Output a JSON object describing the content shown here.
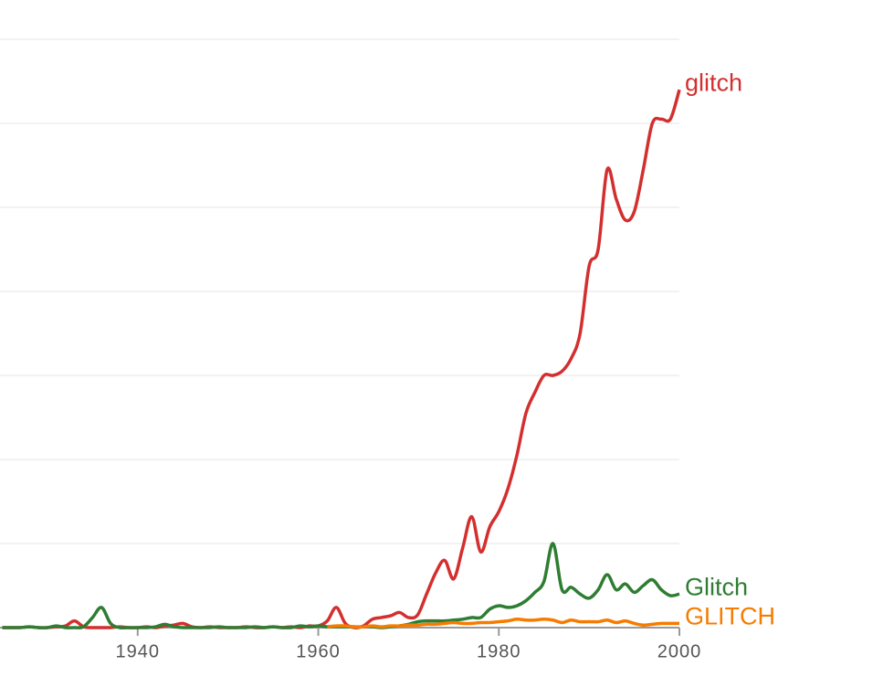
{
  "chart_data": {
    "type": "line",
    "x": [
      1925,
      1926,
      1927,
      1928,
      1929,
      1930,
      1931,
      1932,
      1933,
      1934,
      1935,
      1936,
      1937,
      1938,
      1939,
      1940,
      1941,
      1942,
      1943,
      1944,
      1945,
      1946,
      1947,
      1948,
      1949,
      1950,
      1951,
      1952,
      1953,
      1954,
      1955,
      1956,
      1957,
      1958,
      1959,
      1960,
      1961,
      1962,
      1963,
      1964,
      1965,
      1966,
      1967,
      1968,
      1969,
      1970,
      1971,
      1972,
      1973,
      1974,
      1975,
      1976,
      1977,
      1978,
      1979,
      1980,
      1981,
      1982,
      1983,
      1984,
      1985,
      1986,
      1987,
      1988,
      1989,
      1990,
      1991,
      1992,
      1993,
      1994,
      1995,
      1996,
      1997,
      1998,
      1999,
      2000
    ],
    "series": [
      {
        "name": "glitch",
        "color": "#d32f2f",
        "values": [
          0,
          0,
          0,
          0.01,
          0,
          0,
          0.01,
          0.02,
          0.08,
          0.01,
          0,
          0,
          0,
          0.01,
          0,
          0,
          0.01,
          0,
          0.02,
          0.03,
          0.05,
          0.01,
          0,
          0.01,
          0,
          0,
          0,
          0.01,
          0,
          0,
          0.01,
          0,
          0.01,
          0,
          0.02,
          0.02,
          0.08,
          0.24,
          0.05,
          0,
          0.02,
          0.1,
          0.12,
          0.14,
          0.18,
          0.12,
          0.15,
          0.4,
          0.65,
          0.8,
          0.58,
          0.95,
          1.32,
          0.9,
          1.2,
          1.38,
          1.65,
          2.05,
          2.55,
          2.8,
          3.0,
          3.0,
          3.05,
          3.2,
          3.5,
          4.3,
          4.5,
          5.45,
          5.1,
          4.85,
          4.95,
          5.45,
          6.0,
          6.05,
          6.05,
          6.4
        ]
      },
      {
        "name": "Glitch",
        "color": "#2e7d32",
        "values": [
          0,
          0,
          0,
          0.01,
          0,
          0,
          0.02,
          0,
          0,
          0.01,
          0.12,
          0.24,
          0.05,
          0,
          0,
          0,
          0,
          0.01,
          0.04,
          0.01,
          0,
          0,
          0,
          0,
          0.01,
          0,
          0,
          0,
          0.01,
          0,
          0.01,
          0,
          0,
          0.02,
          0.01,
          0.02,
          0.01,
          0.01,
          0.01,
          0.01,
          0.01,
          0.01,
          0,
          0.01,
          0.02,
          0.04,
          0.07,
          0.08,
          0.08,
          0.08,
          0.09,
          0.1,
          0.12,
          0.12,
          0.22,
          0.26,
          0.24,
          0.26,
          0.32,
          0.42,
          0.55,
          1.0,
          0.45,
          0.48,
          0.4,
          0.35,
          0.45,
          0.63,
          0.45,
          0.52,
          0.42,
          0.5,
          0.57,
          0.45,
          0.38,
          0.4
        ]
      },
      {
        "name": "GLITCH",
        "color": "#f57c00",
        "values": [
          null,
          null,
          null,
          null,
          null,
          null,
          null,
          null,
          null,
          null,
          null,
          null,
          null,
          null,
          null,
          null,
          null,
          null,
          null,
          null,
          null,
          null,
          null,
          null,
          null,
          null,
          null,
          null,
          null,
          null,
          null,
          null,
          null,
          null,
          null,
          null,
          0.01,
          0.02,
          0.02,
          0.01,
          0.01,
          0.02,
          0.01,
          0.02,
          0.02,
          0.03,
          0.03,
          0.04,
          0.04,
          0.05,
          0.06,
          0.05,
          0.05,
          0.06,
          0.06,
          0.07,
          0.08,
          0.1,
          0.09,
          0.09,
          0.1,
          0.09,
          0.06,
          0.09,
          0.07,
          0.07,
          0.07,
          0.09,
          0.06,
          0.08,
          0.05,
          0.03,
          0.04,
          0.05,
          0.05,
          0.05
        ]
      }
    ],
    "xlim": [
      1924.75,
      2000
    ],
    "xticks": [
      1940,
      1960,
      1980,
      2000
    ],
    "ylim": [
      0,
      7
    ],
    "ygrid": [
      1,
      2,
      3,
      4,
      5,
      6,
      7
    ],
    "grid": true
  }
}
